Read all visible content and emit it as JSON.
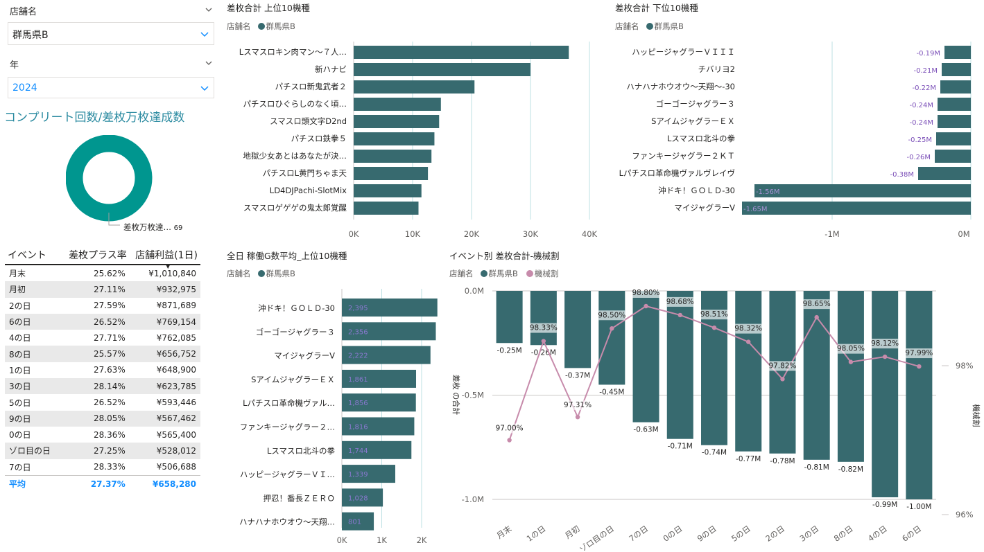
{
  "slicers": {
    "store": {
      "label": "店舗名",
      "value": "群馬県B"
    },
    "year": {
      "label": "年",
      "value": "2024"
    }
  },
  "donut": {
    "title": "コンプリート回数/差枚万枚達成数",
    "label": "差枚万枚達…",
    "value": "69"
  },
  "event_table": {
    "headers": [
      "イベント",
      "差枚プラス率",
      "店舗利益(1日)"
    ],
    "rows": [
      [
        "月末",
        "25.62%",
        "¥1,010,840"
      ],
      [
        "月初",
        "27.11%",
        "¥932,975"
      ],
      [
        "2の日",
        "27.59%",
        "¥871,689"
      ],
      [
        "6の日",
        "26.52%",
        "¥769,154"
      ],
      [
        "4の日",
        "27.71%",
        "¥762,085"
      ],
      [
        "8の日",
        "25.57%",
        "¥656,752"
      ],
      [
        "1の日",
        "27.63%",
        "¥648,900"
      ],
      [
        "3の日",
        "28.14%",
        "¥623,785"
      ],
      [
        "5の日",
        "26.52%",
        "¥593,446"
      ],
      [
        "9の日",
        "28.05%",
        "¥567,462"
      ],
      [
        "0の日",
        "28.36%",
        "¥565,400"
      ],
      [
        "ゾロ目の日",
        "27.25%",
        "¥528,012"
      ],
      [
        "7の日",
        "28.33%",
        "¥506,688"
      ]
    ],
    "total": [
      "平均",
      "27.37%",
      "¥658,280"
    ]
  },
  "colors": {
    "bar": "#376a6f",
    "teal": "#00968f",
    "accent": "#118dff",
    "line": "#c78bab",
    "label_purple": "#7b4fb8"
  },
  "legend_store_label": "店舗名",
  "legend_store_value": "群馬県B",
  "legend_ratio_label": "機械割",
  "chart_data": [
    {
      "id": "top10",
      "type": "bar",
      "orientation": "horizontal",
      "title": "差枚合計 上位10機種",
      "categories": [
        "Lスマスロキン肉マン～７人…",
        "新ハナビ",
        "パチスロ新鬼武者２",
        "パチスロひぐらしのなく頃…",
        "スマスロ頭文字D2nd",
        "パチスロ鉄拳５",
        "地獄少女あとはあなたが決…",
        "パチスロL黄門ちゃま天",
        "LD4DJPachi-SlotMix",
        "スマスロゲゲゲの鬼太郎覚醒"
      ],
      "values": [
        36500,
        30000,
        20500,
        14800,
        14500,
        13700,
        13200,
        12600,
        11500,
        11000
      ],
      "xlim": [
        0,
        40000
      ],
      "ticks": [
        "0K",
        "10K",
        "20K",
        "30K",
        "40K"
      ]
    },
    {
      "id": "bottom10",
      "type": "bar",
      "orientation": "horizontal",
      "title": "差枚合計 下位10機種",
      "categories": [
        "ハッピージャグラーＶＩＩＩ",
        "チバリヨ2",
        "ハナハナホウオウ～天翔～-30",
        "ゴーゴージャグラー３",
        "SアイムジャグラーＥＸ",
        "Lスマスロ北斗の拳",
        "ファンキージャグラー２ＫＴ",
        "Lパチスロ革命機ヴァルヴレイヴ",
        "沖ドキ！ＧＯＬＤ-30",
        "マイジャグラーV"
      ],
      "values": [
        -0.19,
        -0.21,
        -0.22,
        -0.24,
        -0.24,
        -0.25,
        -0.26,
        -0.38,
        -1.56,
        -1.65
      ],
      "labels": [
        "-0.19M",
        "-0.21M",
        "-0.22M",
        "-0.24M",
        "-0.24M",
        "-0.25M",
        "-0.26M",
        "-0.38M",
        "-1.56M",
        "-1.65M"
      ],
      "xlim": [
        -1.65,
        0
      ],
      "ticks": [
        "-1M",
        "0M"
      ]
    },
    {
      "id": "games",
      "type": "bar",
      "orientation": "horizontal",
      "title": "全日 稼働G数平均_上位10機種",
      "categories": [
        "沖ドキ！ＧＯＬＤ-30",
        "ゴーゴージャグラー３",
        "マイジャグラーV",
        "SアイムジャグラーＥＸ",
        "Lパチスロ革命機ヴァル…",
        "ファンキージャグラー２…",
        "Lスマスロ北斗の拳",
        "ハッピージャグラーＶＩ…",
        "押忍！番長ＺＥＲＯ",
        "ハナハナホウオウ～天翔…"
      ],
      "values": [
        2395,
        2356,
        2222,
        1861,
        1856,
        1816,
        1744,
        1339,
        1028,
        801
      ],
      "labels": [
        "2,395",
        "2,356",
        "2,222",
        "1,861",
        "1,856",
        "1,816",
        "1,744",
        "1,339",
        "1,028",
        "801"
      ],
      "xlim": [
        0,
        2400
      ],
      "ticks": [
        "0K",
        "1K",
        "2K"
      ]
    },
    {
      "id": "event_combo",
      "type": "bar",
      "title": "イベント別 差枚合計-機械割",
      "categories": [
        "月末",
        "1の日",
        "月初",
        "ゾロ目の日",
        "7の日",
        "0の日",
        "9の日",
        "5の日",
        "2の日",
        "3の日",
        "8の日",
        "4の日",
        "6の日"
      ],
      "series": [
        {
          "name": "群馬県B",
          "values": [
            -0.25,
            -0.26,
            -0.37,
            -0.45,
            -0.63,
            -0.71,
            -0.74,
            -0.77,
            -0.78,
            -0.81,
            -0.82,
            -0.99,
            -1.0
          ],
          "labels": [
            "-0.25M",
            "-0.26M",
            "-0.37M",
            "-0.45M",
            "-0.63M",
            "-0.71M",
            "-0.74M",
            "-0.77M",
            "-0.78M",
            "-0.81M",
            "-0.82M",
            "-0.99M",
            "-1.00M"
          ]
        },
        {
          "name": "機械割",
          "type": "line",
          "values": [
            97.0,
            98.33,
            97.31,
            98.5,
            98.8,
            98.68,
            98.51,
            98.32,
            97.82,
            98.65,
            98.05,
            98.12,
            97.99
          ],
          "labels": [
            "97.00%",
            "98.33%",
            "97.31%",
            "98.50%",
            "98.80%",
            "98.68%",
            "98.51%",
            "98.32%",
            "97.82%",
            "98.65%",
            "98.05%",
            "98.12%",
            "97.99%"
          ]
        }
      ],
      "ylabel": "差枚 の合計",
      "y2label": "機械割",
      "ylim": [
        -1.0,
        0
      ],
      "y2lim": [
        96,
        99
      ],
      "yticks": [
        "0.0M",
        "-0.5M",
        "-1.0M"
      ],
      "y2ticks": [
        "98%",
        "96%"
      ]
    }
  ]
}
